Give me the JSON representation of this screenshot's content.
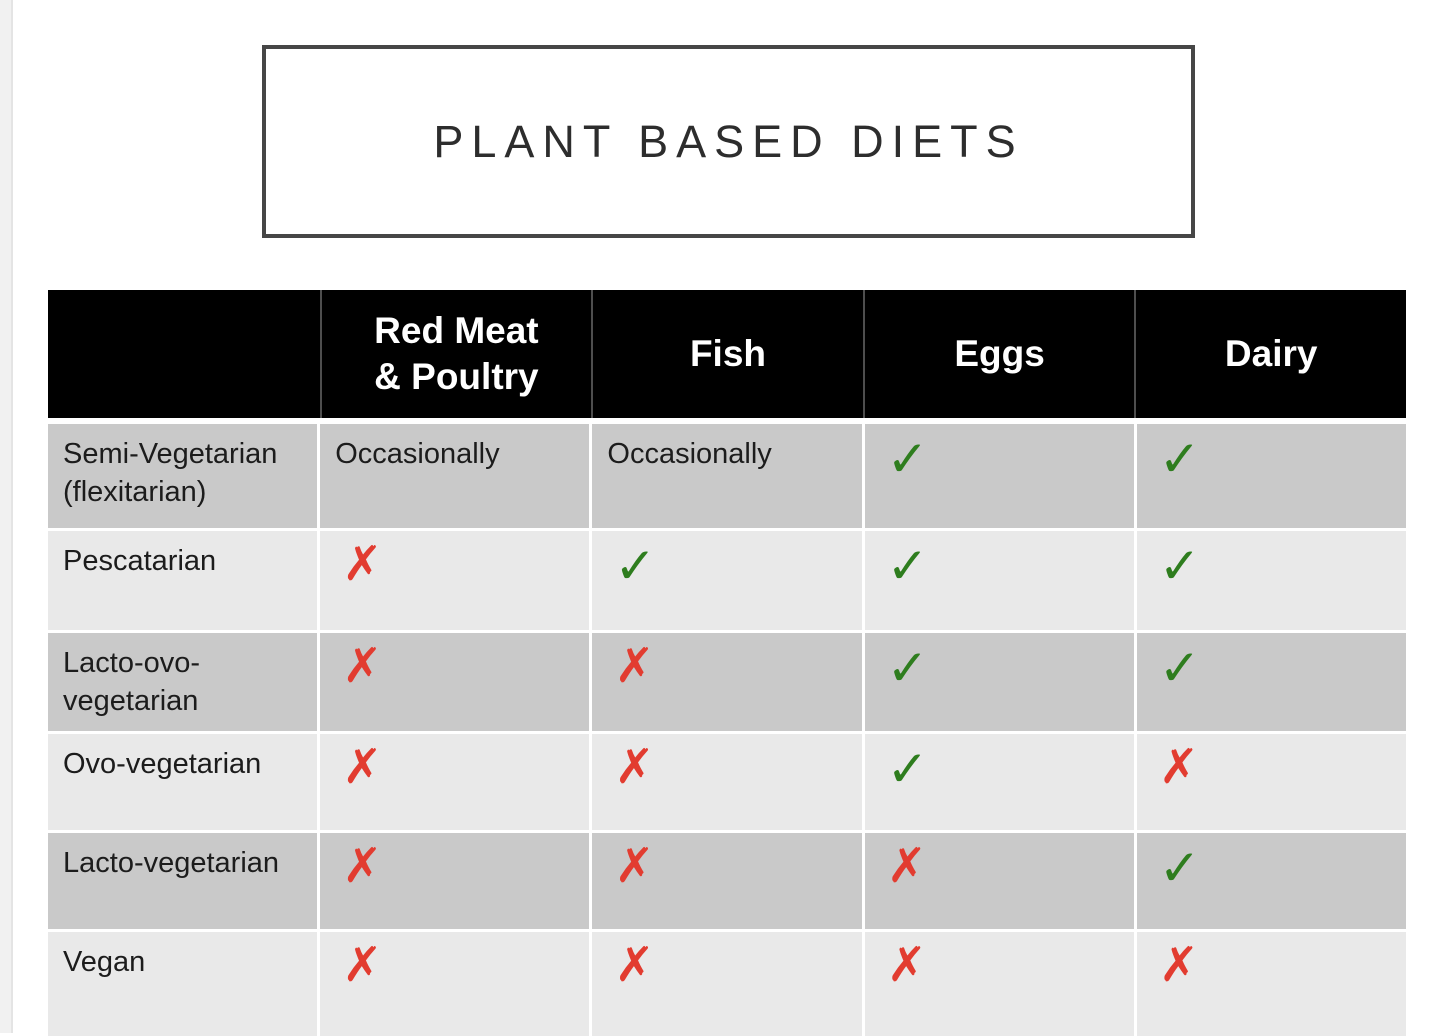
{
  "title": {
    "text": "PLANT BASED DIETS"
  },
  "table": {
    "columns": [
      "",
      "Red Meat & Poultry",
      "Fish",
      "Eggs",
      "Dairy"
    ],
    "rows": [
      {
        "label": "Semi-Vegetarian (flexitarian)",
        "cells": [
          "Occasionally",
          "Occasionally",
          "check",
          "check"
        ]
      },
      {
        "label": "Pescatarian",
        "cells": [
          "cross",
          "check",
          "check",
          "check"
        ]
      },
      {
        "label": "Lacto-ovo-vegetarian",
        "cells": [
          "cross",
          "cross",
          "check",
          "check"
        ]
      },
      {
        "label": "Ovo-vegetarian",
        "cells": [
          "cross",
          "cross",
          "check",
          "cross"
        ]
      },
      {
        "label": "Lacto-vegetarian",
        "cells": [
          "cross",
          "cross",
          "cross",
          "check"
        ]
      },
      {
        "label": "Vegan",
        "cells": [
          "cross",
          "cross",
          "cross",
          "cross"
        ]
      }
    ],
    "marks": {
      "check": "✓",
      "cross": "✗"
    },
    "colors": {
      "header_bg": "#000000",
      "header_text": "#ffffff",
      "row_dark": "#c9c9c9",
      "row_light": "#e9e9e9",
      "check": "#2e7d1e",
      "cross": "#e23c30"
    }
  }
}
